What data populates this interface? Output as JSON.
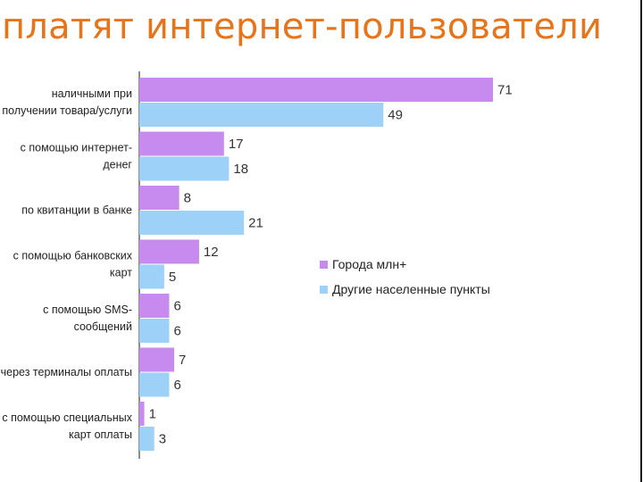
{
  "slide": {
    "title": "платят интернет-пользователи"
  },
  "chart_data": {
    "type": "bar",
    "orientation": "horizontal",
    "categories": [
      [
        "наличными при",
        "получении товара/услуги"
      ],
      [
        "с помощью интернет-",
        "денег"
      ],
      [
        "по квитанции в банке"
      ],
      [
        "с помощью банковских",
        "карт"
      ],
      [
        "с помощью SMS-",
        "сообщений"
      ],
      [
        "через терминалы оплаты"
      ],
      [
        "с помощью специальных",
        "карт оплаты"
      ]
    ],
    "series": [
      {
        "name": "Города млн+",
        "color": "#c78bef",
        "values": [
          71,
          17,
          8,
          12,
          6,
          7,
          1
        ]
      },
      {
        "name": "Другие населенные пункты",
        "color": "#9dd1f7",
        "values": [
          49,
          18,
          21,
          5,
          6,
          6,
          3
        ]
      }
    ],
    "xlim": [
      0,
      71
    ],
    "legend_position": "right",
    "grid": false,
    "title": "",
    "xlabel": "",
    "ylabel": ""
  }
}
